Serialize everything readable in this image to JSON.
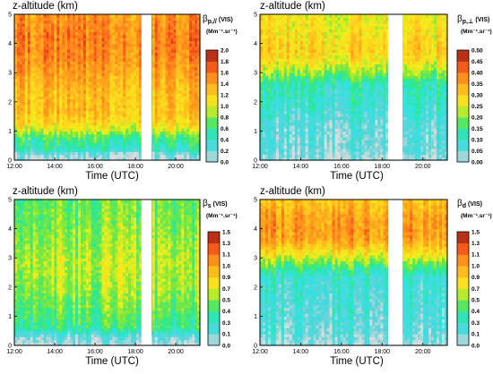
{
  "chart_data": [
    {
      "type": "heatmap",
      "panel": "top-left",
      "title": "z-altitude (km)",
      "xlabel": "Time (UTC)",
      "ylabel": "",
      "x_ticks": [
        "12:00",
        "14:00",
        "16:00",
        "18:00",
        "20:00"
      ],
      "y_ticks": [
        "0",
        "1",
        "2",
        "3",
        "4",
        "5"
      ],
      "xlim_hours": [
        12.0,
        21.2
      ],
      "ylim_km": [
        0,
        5
      ],
      "gaps_hours": [
        [
          18.3,
          18.8
        ]
      ],
      "colorbar_label": "βp,// (VIS)",
      "colorbar_unit": "(Mm⁻¹.sr⁻¹)",
      "colorbar_ticks": [
        "0.0",
        "0.2",
        "0.4",
        "0.6",
        "0.8",
        "1.0",
        "1.2",
        "1.4",
        "1.6",
        "1.8",
        "2.0"
      ],
      "colorbar_range": [
        0,
        2.0
      ],
      "z_profile": [
        [
          0,
          0.05
        ],
        [
          0.2,
          0.1
        ],
        [
          0.35,
          0.4
        ],
        [
          0.6,
          0.55
        ],
        [
          0.8,
          0.65
        ],
        [
          1.0,
          0.9
        ],
        [
          1.2,
          1.1
        ],
        [
          1.6,
          1.25
        ],
        [
          2.5,
          1.3
        ],
        [
          3.5,
          1.5
        ],
        [
          4.2,
          1.55
        ],
        [
          5,
          1.45
        ]
      ]
    },
    {
      "type": "heatmap",
      "panel": "top-right",
      "title": "z-altitude (km)",
      "xlabel": "Time (UTC)",
      "ylabel": "",
      "x_ticks": [
        "12:00",
        "14:00",
        "16:00",
        "18:00",
        "20:00"
      ],
      "y_ticks": [
        "0",
        "1",
        "2",
        "3",
        "4",
        "5"
      ],
      "xlim_hours": [
        12.0,
        21.2
      ],
      "ylim_km": [
        0,
        5
      ],
      "gaps_hours": [
        [
          18.3,
          19.0
        ]
      ],
      "colorbar_label": "βp,⊥ (VIS)",
      "colorbar_unit": "(Mm⁻¹.sr⁻¹)",
      "colorbar_ticks": [
        "0.00",
        "0.05",
        "0.10",
        "0.15",
        "0.20",
        "0.25",
        "0.30",
        "0.35",
        "0.40",
        "0.45",
        "0.50"
      ],
      "colorbar_range": [
        0,
        0.5
      ],
      "z_profile": [
        [
          0,
          0.02
        ],
        [
          0.4,
          0.05
        ],
        [
          1.2,
          0.06
        ],
        [
          1.8,
          0.09
        ],
        [
          2.6,
          0.12
        ],
        [
          3.0,
          0.2
        ],
        [
          3.4,
          0.27
        ],
        [
          3.8,
          0.3
        ],
        [
          4.2,
          0.28
        ],
        [
          5,
          0.26
        ]
      ]
    },
    {
      "type": "heatmap",
      "panel": "bottom-left",
      "title": "z-altitude (km)",
      "xlabel": "Time (UTC)",
      "ylabel": "",
      "x_ticks": [
        "12:00",
        "14:00",
        "16:00",
        "18:00",
        "20:00"
      ],
      "y_ticks": [
        "0",
        "1",
        "2",
        "3",
        "4",
        "5"
      ],
      "xlim_hours": [
        12.0,
        21.2
      ],
      "ylim_km": [
        0,
        5
      ],
      "gaps_hours": [
        [
          18.3,
          18.8
        ]
      ],
      "colorbar_label": "βs (VIS)",
      "colorbar_unit": "(Mm⁻¹.sr⁻¹)",
      "colorbar_ticks": [
        "0.0",
        "0.1",
        "0.3",
        "0.4",
        "0.5",
        "0.7",
        "0.9",
        "1.0",
        "1.1",
        "1.3",
        "1.5"
      ],
      "colorbar_range": [
        0,
        1.5
      ],
      "z_profile": [
        [
          0,
          0.05
        ],
        [
          0.3,
          0.15
        ],
        [
          0.6,
          0.45
        ],
        [
          1.2,
          0.55
        ],
        [
          2.0,
          0.65
        ],
        [
          2.8,
          0.7
        ],
        [
          3.5,
          0.65
        ],
        [
          4.2,
          0.6
        ],
        [
          5,
          0.55
        ]
      ]
    },
    {
      "type": "heatmap",
      "panel": "bottom-right",
      "title": "z-altitude (km)",
      "xlabel": "Time (UTC)",
      "ylabel": "",
      "x_ticks": [
        "12:00",
        "14:00",
        "16:00",
        "18:00",
        "20:00"
      ],
      "y_ticks": [
        "0",
        "1",
        "2",
        "3",
        "4",
        "5"
      ],
      "xlim_hours": [
        12.0,
        21.2
      ],
      "ylim_km": [
        0,
        5
      ],
      "gaps_hours": [
        [
          18.3,
          19.0
        ]
      ],
      "colorbar_label": "βd (VIS)",
      "colorbar_unit": "(Mm⁻¹.sr⁻¹)",
      "colorbar_ticks": [
        "0.0",
        "0.1",
        "0.3",
        "0.4",
        "0.5",
        "0.7",
        "0.9",
        "1.0",
        "1.1",
        "1.3",
        "1.5"
      ],
      "colorbar_range": [
        0,
        1.5
      ],
      "z_profile": [
        [
          0,
          0.1
        ],
        [
          0.6,
          0.18
        ],
        [
          1.2,
          0.22
        ],
        [
          2.0,
          0.26
        ],
        [
          2.4,
          0.3
        ],
        [
          2.8,
          0.55
        ],
        [
          3.2,
          0.85
        ],
        [
          3.6,
          1.05
        ],
        [
          4.0,
          1.1
        ],
        [
          4.5,
          1.05
        ],
        [
          5,
          0.95
        ]
      ]
    }
  ],
  "colorscale": [
    "#d8dcdc",
    "#5fd3d8",
    "#2fe2e0",
    "#2ee88a",
    "#7ee83a",
    "#f2ef1c",
    "#ffd21e",
    "#ffa51c",
    "#ff7a1c",
    "#ec3a18",
    "#8a2814"
  ]
}
